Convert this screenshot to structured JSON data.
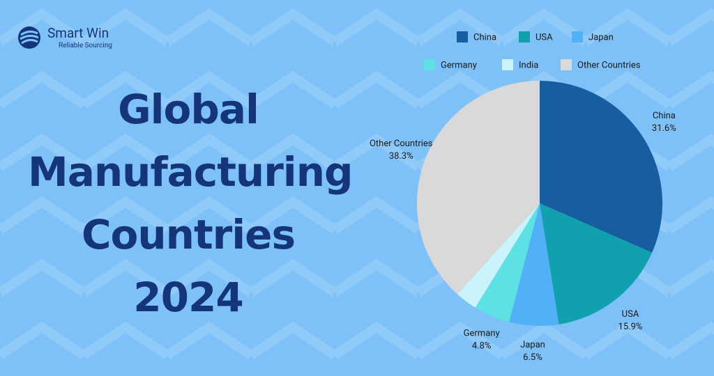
{
  "logo": {
    "name": "Smart Win",
    "tagline": "Reliable Sourcing"
  },
  "chart_data": {
    "type": "pie",
    "title": "Global\nManufacturing\nCountries\n2024",
    "categories": [
      "China",
      "USA",
      "Japan",
      "Germany",
      "India",
      "Other Countries"
    ],
    "values": [
      31.6,
      15.9,
      6.5,
      4.8,
      2.9,
      38.3
    ],
    "value_labels": [
      "31.6%",
      "15.9%",
      "6.5%",
      "4.8%",
      null,
      "38.3%"
    ],
    "colors": [
      "#175ea0",
      "#11a0ae",
      "#52b0f7",
      "#5ee1e4",
      "#c9f4fb",
      "#d9d9d9"
    ],
    "legend": "top"
  }
}
